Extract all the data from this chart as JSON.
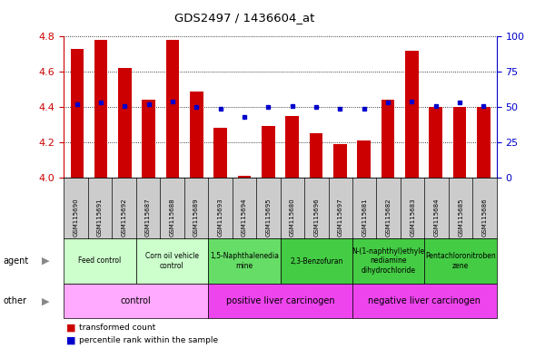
{
  "title": "GDS2497 / 1436604_at",
  "samples": [
    "GSM115690",
    "GSM115691",
    "GSM115692",
    "GSM115687",
    "GSM115688",
    "GSM115689",
    "GSM115693",
    "GSM115694",
    "GSM115695",
    "GSM115680",
    "GSM115696",
    "GSM115697",
    "GSM115681",
    "GSM115682",
    "GSM115683",
    "GSM115684",
    "GSM115685",
    "GSM115686"
  ],
  "transformed_count": [
    4.73,
    4.78,
    4.62,
    4.44,
    4.78,
    4.49,
    4.28,
    4.01,
    4.29,
    4.35,
    4.25,
    4.19,
    4.21,
    4.44,
    4.72,
    4.4,
    4.4,
    4.4
  ],
  "percentile_rank": [
    52,
    53,
    51,
    52,
    54,
    50,
    49,
    43,
    50,
    51,
    50,
    49,
    49,
    53,
    54,
    51,
    53,
    51
  ],
  "ylim_left": [
    4.0,
    4.8
  ],
  "ylim_right": [
    0,
    100
  ],
  "yticks_left": [
    4.0,
    4.2,
    4.4,
    4.6,
    4.8
  ],
  "yticks_right": [
    0,
    25,
    50,
    75,
    100
  ],
  "agent_groups": [
    {
      "label": "Feed control",
      "start": 0,
      "end": 3,
      "color": "#ccffcc"
    },
    {
      "label": "Corn oil vehicle\ncontrol",
      "start": 3,
      "end": 6,
      "color": "#ccffcc"
    },
    {
      "label": "1,5-Naphthalenedia\nmine",
      "start": 6,
      "end": 9,
      "color": "#66dd66"
    },
    {
      "label": "2,3-Benzofuran",
      "start": 9,
      "end": 12,
      "color": "#44cc44"
    },
    {
      "label": "N-(1-naphthyl)ethyle\nnediamine\ndihydrochloride",
      "start": 12,
      "end": 15,
      "color": "#44cc44"
    },
    {
      "label": "Pentachloronitroben\nzene",
      "start": 15,
      "end": 18,
      "color": "#44cc44"
    }
  ],
  "other_groups": [
    {
      "label": "control",
      "start": 0,
      "end": 6,
      "color": "#ffaaff"
    },
    {
      "label": "positive liver carcinogen",
      "start": 6,
      "end": 12,
      "color": "#ee44ee"
    },
    {
      "label": "negative liver carcinogen",
      "start": 12,
      "end": 18,
      "color": "#ee44ee"
    }
  ],
  "bar_color": "#cc0000",
  "dot_color": "#0000cc",
  "left_axis_color": "#cc0000",
  "right_axis_color": "#0000cc",
  "bg_color": "#ffffff",
  "xtick_bg": "#cccccc"
}
